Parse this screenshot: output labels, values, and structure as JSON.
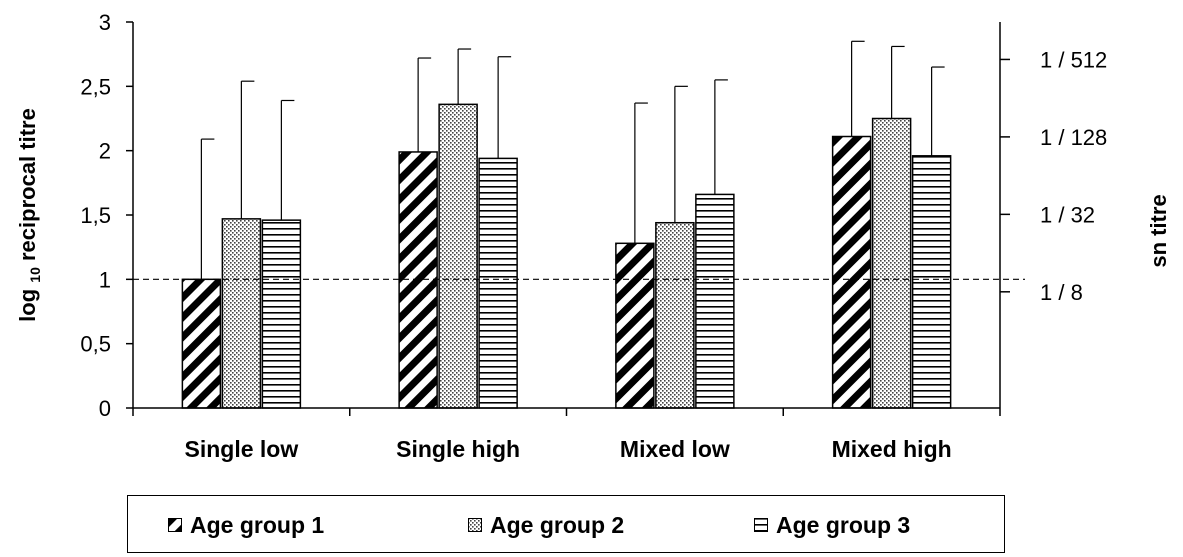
{
  "chart_data": {
    "type": "bar",
    "categories": [
      "Single low",
      "Single high",
      "Mixed low",
      "Mixed high"
    ],
    "series": [
      {
        "name": "Age group 1",
        "values": [
          1.0,
          1.99,
          1.28,
          2.11
        ],
        "error_upper": [
          2.09,
          2.72,
          2.37,
          2.85
        ]
      },
      {
        "name": "Age group 2",
        "values": [
          1.47,
          2.36,
          1.44,
          2.25
        ],
        "error_upper": [
          2.54,
          2.79,
          2.5,
          2.81
        ]
      },
      {
        "name": "Age group 3",
        "values": [
          1.46,
          1.94,
          1.66,
          1.96
        ],
        "error_upper": [
          2.39,
          2.73,
          2.55,
          2.65
        ]
      }
    ],
    "ylabel": "log 10 reciprocal titre",
    "ylabel_parts": {
      "prefix": "log",
      "subscript": "10",
      "suffix": "reciprocal titre"
    },
    "y2label": "sn titre",
    "ylim": [
      0,
      3
    ],
    "yticks": [
      0,
      0.5,
      1,
      1.5,
      2,
      2.5,
      3
    ],
    "ytick_labels": [
      "0",
      "0,5",
      "1",
      "1,5",
      "2",
      "2,5",
      "3"
    ],
    "y2ticks": [
      {
        "value": 0.903,
        "label": "1 / 8"
      },
      {
        "value": 1.505,
        "label": "1 / 32"
      },
      {
        "value": 2.107,
        "label": "1 / 128"
      },
      {
        "value": 2.709,
        "label": "1 / 512"
      }
    ],
    "reference_line": {
      "value": 1,
      "style": "dashed"
    },
    "grid": false,
    "legend_position": "bottom",
    "patterns": [
      "diagonal-hatch",
      "dotted",
      "horizontal-lines"
    ]
  }
}
